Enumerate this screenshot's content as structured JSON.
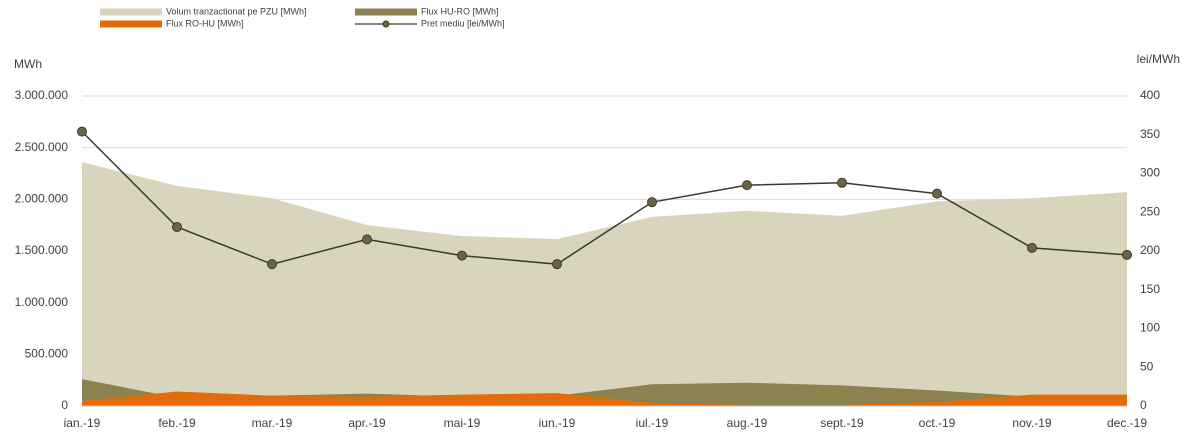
{
  "chart_data": {
    "type": "area",
    "y_label": "MWh",
    "y2_label": "lei/MWh",
    "categories": [
      "ian.-19",
      "feb.-19",
      "mar.-19",
      "apr.-19",
      "mai-19",
      "iun.-19",
      "iul.-19",
      "aug.-19",
      "sept.-19",
      "oct.-19",
      "nov.-19",
      "dec.-19"
    ],
    "series": [
      {
        "name": "Volum tranzactionat pe PZU [MWh]",
        "type": "area",
        "color": "#d9d4bc",
        "values": [
          2360000,
          2130000,
          2010000,
          1750000,
          1645000,
          1615000,
          1830000,
          1890000,
          1840000,
          1980000,
          2010000,
          2070000
        ]
      },
      {
        "name": "Flux HU-RO [MWh]",
        "type": "area",
        "color": "#8c8250",
        "values": [
          260000,
          80000,
          100000,
          120000,
          90000,
          100000,
          210000,
          225000,
          200000,
          150000,
          90000,
          100000
        ]
      },
      {
        "name": "Flux RO-HU [MWh]",
        "type": "area",
        "color": "#e36c0a",
        "values": [
          50000,
          140000,
          100000,
          90000,
          110000,
          125000,
          30000,
          10000,
          10000,
          40000,
          110000,
          110000
        ]
      },
      {
        "name": "Pret mediu [lei/MWh]",
        "type": "line",
        "axis": "y2",
        "color": "#3b3a2a",
        "marker_color": "#6b6446",
        "values": [
          354,
          231,
          183,
          215,
          194,
          183,
          263,
          285,
          288,
          274,
          204,
          195
        ]
      }
    ],
    "ylim": [
      0,
      3000000
    ],
    "yticks": [
      0,
      {
        "value": 500000,
        "label": "500.000"
      },
      {
        "value": 1000000,
        "label": "1.000.000"
      },
      {
        "value": 1500000,
        "label": "1.500.000"
      },
      {
        "value": 2000000,
        "label": "2.000.000"
      },
      {
        "value": 2500000,
        "label": "2.500.000"
      },
      {
        "value": 3000000,
        "label": "3.000.000"
      }
    ],
    "y2lim": [
      0,
      400
    ],
    "y2ticks": [
      0,
      50,
      100,
      150,
      200,
      250,
      300,
      350,
      400
    ],
    "grid": true
  }
}
